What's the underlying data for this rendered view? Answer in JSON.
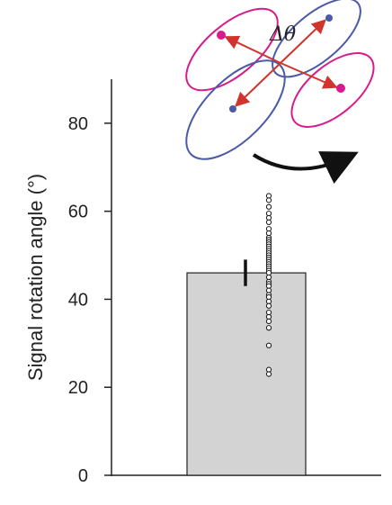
{
  "chart_data": {
    "type": "bar",
    "ylabel": "Signal rotation angle (°)",
    "xlabel": "",
    "ylim": [
      0,
      90
    ],
    "yticks": [
      0,
      20,
      40,
      60,
      80
    ],
    "grid": false,
    "bar": {
      "value": 46,
      "error": 3
    },
    "points": [
      63.5,
      62.5,
      61,
      59.5,
      58.5,
      57.5,
      56,
      55,
      54,
      53.5,
      53,
      52.5,
      52,
      51.5,
      51,
      50.5,
      50,
      49.5,
      49,
      48.5,
      48,
      47.5,
      47,
      46.5,
      46,
      45,
      44,
      43.5,
      43,
      42,
      41,
      40.5,
      39.5,
      38.5,
      37,
      36,
      35,
      33.5,
      29.5,
      24,
      23
    ],
    "colors": {
      "bar_fill": "#d3d3d3",
      "axis": "#222222",
      "pink": "#d81b8c",
      "blue": "#4a5aa8",
      "arrow_red": "#d0342c"
    }
  },
  "inset": {
    "label": "Δθ"
  }
}
